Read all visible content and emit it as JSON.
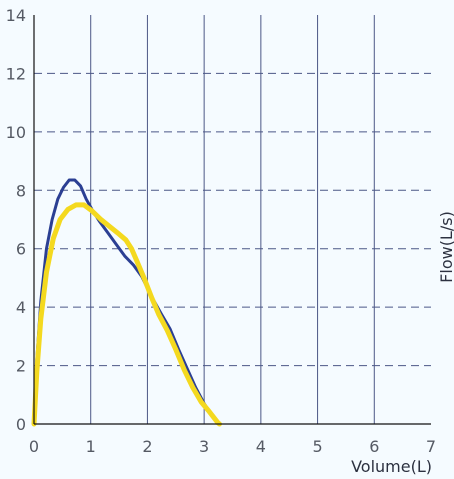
{
  "chart_data": {
    "type": "line",
    "title": "",
    "xlabel": "Volume(L)",
    "ylabel": "Flow(L/s)",
    "xlim": [
      0,
      7
    ],
    "ylim": [
      0,
      14
    ],
    "x_ticks": [
      "0",
      "1",
      "2",
      "3",
      "4",
      "5",
      "6",
      "7"
    ],
    "y_ticks": [
      "0",
      "2",
      "4",
      "6",
      "8",
      "10",
      "12",
      "14"
    ],
    "grid": {
      "vertical": "solid",
      "horizontal": "dashed"
    },
    "legend": "none",
    "colors": {
      "background": "#f5fbff",
      "grid_vertical": "#4b5786",
      "grid_horizontal": "#4b5786",
      "axis": "#111111",
      "series_1": "#2b3f93",
      "series_2": "#f4d91f"
    },
    "series": [
      {
        "values": [
          [
            0.0,
            0.0
          ],
          [
            0.05,
            2.2
          ],
          [
            0.12,
            4.2
          ],
          [
            0.22,
            6.0
          ],
          [
            0.32,
            7.0
          ],
          [
            0.42,
            7.7
          ],
          [
            0.52,
            8.1
          ],
          [
            0.62,
            8.35
          ],
          [
            0.72,
            8.35
          ],
          [
            0.82,
            8.15
          ],
          [
            0.92,
            7.7
          ],
          [
            1.02,
            7.35
          ],
          [
            1.15,
            6.95
          ],
          [
            1.3,
            6.55
          ],
          [
            1.45,
            6.15
          ],
          [
            1.6,
            5.75
          ],
          [
            1.75,
            5.45
          ],
          [
            1.9,
            5.05
          ],
          [
            2.0,
            4.65
          ],
          [
            2.12,
            4.2
          ],
          [
            2.25,
            3.75
          ],
          [
            2.4,
            3.25
          ],
          [
            2.55,
            2.55
          ],
          [
            2.7,
            1.9
          ],
          [
            2.85,
            1.25
          ],
          [
            3.0,
            0.7
          ],
          [
            3.12,
            0.35
          ],
          [
            3.22,
            0.12
          ],
          [
            3.26,
            0.0
          ]
        ]
      },
      {
        "values": [
          [
            0.0,
            0.0
          ],
          [
            0.05,
            1.8
          ],
          [
            0.12,
            3.6
          ],
          [
            0.22,
            5.2
          ],
          [
            0.34,
            6.35
          ],
          [
            0.46,
            7.0
          ],
          [
            0.6,
            7.35
          ],
          [
            0.74,
            7.5
          ],
          [
            0.88,
            7.5
          ],
          [
            1.02,
            7.3
          ],
          [
            1.18,
            7.0
          ],
          [
            1.34,
            6.75
          ],
          [
            1.5,
            6.5
          ],
          [
            1.62,
            6.3
          ],
          [
            1.72,
            6.0
          ],
          [
            1.82,
            5.55
          ],
          [
            1.95,
            4.95
          ],
          [
            2.08,
            4.3
          ],
          [
            2.2,
            3.75
          ],
          [
            2.35,
            3.2
          ],
          [
            2.5,
            2.55
          ],
          [
            2.65,
            1.85
          ],
          [
            2.8,
            1.25
          ],
          [
            2.95,
            0.75
          ],
          [
            3.08,
            0.45
          ],
          [
            3.18,
            0.2
          ],
          [
            3.24,
            0.05
          ],
          [
            3.27,
            0.0
          ]
        ]
      }
    ]
  }
}
